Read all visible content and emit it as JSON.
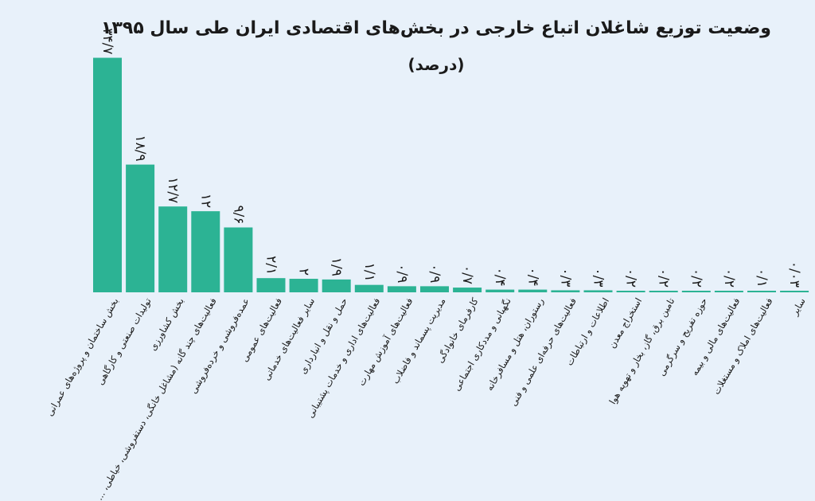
{
  "chart_data": {
    "type": "bar",
    "title": "وضعیت توزیع شاغلان اتباع خارجی در بخش‌های اقتصادی ایران طی سال ۱۳۹۵",
    "subtitle": "(درصد)",
    "bar_color": "#2cb394",
    "ylim": [
      0,
      35
    ],
    "categories": [
      "بخش ساختمان و پروژه‌های عمرانی",
      "تولیدات صنعتی و کارگاهی",
      "بخش کشاورزی",
      "فعالیت‌های چند گانه (مشاغل خانگی، دستفروشی، خیاطی، ...",
      "عمده‌فروشی و خرده‌فروشی",
      "فعالیت‌های عمومی",
      "سایر فعالیت‌های خدماتی",
      "حمل و نقل و انبارداری",
      "فعالیت‌های اداری و خدمات پشتیبانی",
      "فعالیت‌های آموزش مهارت",
      "مدیریت پسماند و فاضلاب",
      "کارفرمای خانوادگی",
      "نگهبانی و مددکاری اجتماعی",
      "رستوران، هتل و مسافرخانه",
      "فعالیت‌های حرفه‌ای علمی و فنی",
      "اطلاعات و ارتباطات",
      "استخراج معدن",
      "تامین برق، گاز، بخار و تهویه هوا",
      "حوزه تفریح و سرگرمی",
      "فعالیت‌های مالی و بیمه",
      "فعالیت‌های املاک و مستغلات",
      "سایر"
    ],
    "values": [
      34.7,
      18.9,
      12.7,
      12,
      9.6,
      2.1,
      2,
      1.9,
      1.1,
      0.9,
      0.9,
      0.7,
      0.4,
      0.4,
      0.3,
      0.3,
      0.2,
      0.2,
      0.2,
      0.2,
      0.1,
      0.03
    ],
    "value_labels": [
      "۳۴/۷",
      "۱۸/۹",
      "۱۲/۷",
      "۱۲",
      "۹/۶",
      "۲/۱",
      "۲",
      "۱/۹",
      "۱/۱",
      "۰/۹",
      "۰/۹",
      "۰/۷",
      "۰/۴",
      "۰/۴",
      "۰/۳",
      "۰/۳",
      "۰/۲",
      "۰/۲",
      "۰/۲",
      "۰/۲",
      "۰/۱",
      "۰/۰۳"
    ]
  }
}
